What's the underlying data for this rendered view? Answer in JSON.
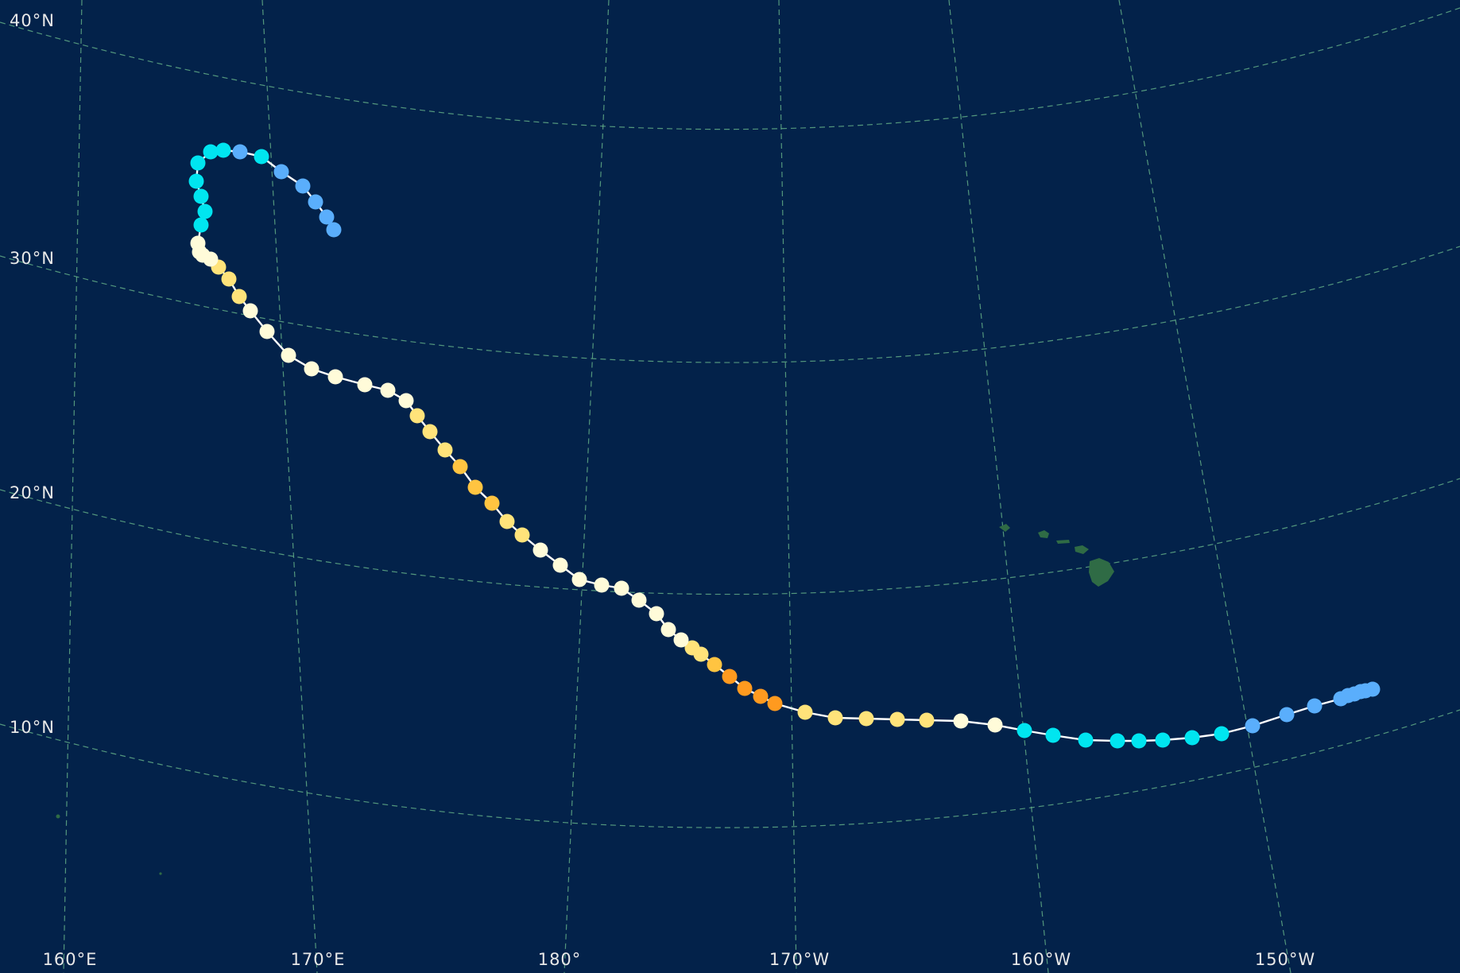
{
  "map": {
    "background": "#03224a",
    "land_color": "#2f6b45",
    "grid_color": "#6fbf8f",
    "track_color": "#ffffff",
    "lat_labels": [
      "40°N",
      "30°N",
      "20°N",
      "10°N"
    ],
    "lon_labels": [
      "160°E",
      "170°E",
      "180°",
      "170°W",
      "160°W",
      "150°W"
    ],
    "landmarks": [
      "hawaiian-islands",
      "small-pacific-islands"
    ],
    "track": {
      "legend_colors": [
        "#5aaefc",
        "#00e5f0",
        "#fffbd9",
        "#ffe37a",
        "#ffc441",
        "#ff9a1f"
      ],
      "point_count": 86,
      "path_description": "storm track starting near 10N 146W moving west, then recurving north near 179E and ending near 30N 175E"
    }
  }
}
